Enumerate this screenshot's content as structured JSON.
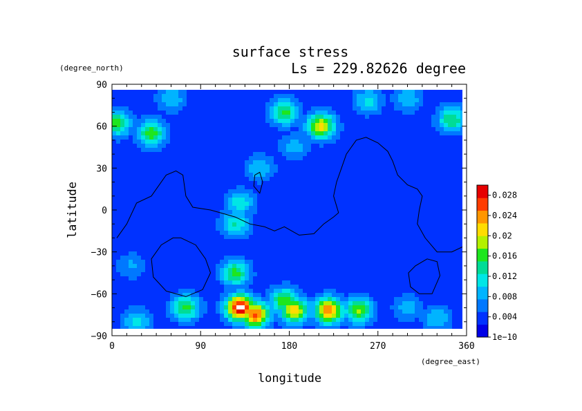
{
  "chart_data": {
    "type": "heatmap",
    "title": "surface stress",
    "subtitle": "Ls = 229.82626 degree",
    "xlabel": "longitude",
    "ylabel": "latitude",
    "x_units": "(degree_east)",
    "y_units": "(degree_north)",
    "xlim": [
      0,
      360
    ],
    "ylim": [
      -90,
      90
    ],
    "x_ticks": [
      "0",
      "90",
      "180",
      "270",
      "360"
    ],
    "y_ticks": [
      "90",
      "60",
      "30",
      "0",
      "−30",
      "−60",
      "−90"
    ],
    "colorbar": {
      "min": 0,
      "max": 0.03,
      "tick_labels": [
        "1e−10",
        "0.004",
        "0.008",
        "0.012",
        "0.016",
        "0.02",
        "0.024",
        "0.028"
      ],
      "tick_values": [
        0,
        0.004,
        0.008,
        0.012,
        0.016,
        0.02,
        0.024,
        0.028
      ],
      "colors": [
        "#0000e6",
        "#0032ff",
        "#0078ff",
        "#00b4ff",
        "#00e6e6",
        "#00dc96",
        "#1ee61e",
        "#b4f000",
        "#ffdc00",
        "#ff9600",
        "#ff3c00",
        "#e60000"
      ]
    },
    "background_value": 0.0035,
    "features": [
      {
        "lon": 212,
        "lat": 60,
        "value": 0.021
      },
      {
        "lon": 130,
        "lat": -70,
        "value": 0.031
      },
      {
        "lon": 145,
        "lat": -75,
        "value": 0.026
      },
      {
        "lon": 185,
        "lat": -72,
        "value": 0.022
      },
      {
        "lon": 220,
        "lat": -72,
        "value": 0.025
      },
      {
        "lon": 250,
        "lat": -72,
        "value": 0.018
      },
      {
        "lon": 175,
        "lat": -65,
        "value": 0.017
      },
      {
        "lon": 125,
        "lat": -45,
        "value": 0.016
      },
      {
        "lon": 125,
        "lat": -10,
        "value": 0.013
      },
      {
        "lon": 130,
        "lat": 5,
        "value": 0.012
      },
      {
        "lon": 150,
        "lat": 30,
        "value": 0.01
      },
      {
        "lon": 185,
        "lat": 45,
        "value": 0.009
      },
      {
        "lon": 175,
        "lat": 70,
        "value": 0.016
      },
      {
        "lon": 260,
        "lat": 78,
        "value": 0.011
      },
      {
        "lon": 300,
        "lat": 80,
        "value": 0.01
      },
      {
        "lon": 40,
        "lat": 55,
        "value": 0.017
      },
      {
        "lon": 5,
        "lat": 62,
        "value": 0.016
      },
      {
        "lon": 345,
        "lat": 65,
        "value": 0.015
      },
      {
        "lon": 60,
        "lat": 80,
        "value": 0.01
      },
      {
        "lon": 25,
        "lat": -80,
        "value": 0.011
      },
      {
        "lon": 75,
        "lat": -70,
        "value": 0.016
      },
      {
        "lon": 330,
        "lat": -78,
        "value": 0.01
      },
      {
        "lon": 300,
        "lat": -70,
        "value": 0.009
      },
      {
        "lon": 20,
        "lat": -40,
        "value": 0.008
      }
    ],
    "contour_lines": [
      [
        [
          5,
          -20
        ],
        [
          15,
          -10
        ],
        [
          25,
          5
        ],
        [
          40,
          10
        ],
        [
          55,
          25
        ],
        [
          65,
          28
        ],
        [
          72,
          25
        ],
        [
          75,
          10
        ],
        [
          82,
          2
        ],
        [
          100,
          0
        ],
        [
          110,
          -2
        ],
        [
          125,
          -5
        ],
        [
          140,
          -10
        ],
        [
          155,
          -12
        ],
        [
          165,
          -15
        ],
        [
          175,
          -12
        ],
        [
          190,
          -18
        ],
        [
          205,
          -17
        ],
        [
          215,
          -10
        ],
        [
          225,
          -5
        ],
        [
          230,
          -2
        ],
        [
          225,
          10
        ],
        [
          228,
          20
        ],
        [
          232,
          28
        ],
        [
          238,
          40
        ],
        [
          248,
          50
        ],
        [
          258,
          52
        ],
        [
          270,
          48
        ],
        [
          280,
          42
        ],
        [
          285,
          35
        ],
        [
          290,
          25
        ],
        [
          300,
          18
        ],
        [
          310,
          15
        ],
        [
          315,
          10
        ],
        [
          312,
          0
        ],
        [
          310,
          -10
        ],
        [
          318,
          -20
        ],
        [
          330,
          -30
        ],
        [
          345,
          -30
        ],
        [
          360,
          -25
        ]
      ],
      [
        [
          70,
          -20
        ],
        [
          85,
          -25
        ],
        [
          95,
          -35
        ],
        [
          100,
          -45
        ],
        [
          92,
          -57
        ],
        [
          75,
          -62
        ],
        [
          55,
          -58
        ],
        [
          42,
          -48
        ],
        [
          40,
          -35
        ],
        [
          50,
          -25
        ],
        [
          62,
          -20
        ],
        [
          70,
          -20
        ]
      ],
      [
        [
          145,
          25
        ],
        [
          150,
          27
        ],
        [
          153,
          20
        ],
        [
          150,
          12
        ],
        [
          144,
          17
        ],
        [
          145,
          25
        ]
      ],
      [
        [
          320,
          -35
        ],
        [
          330,
          -37
        ],
        [
          333,
          -47
        ],
        [
          325,
          -60
        ],
        [
          312,
          -60
        ],
        [
          303,
          -55
        ],
        [
          301,
          -45
        ],
        [
          308,
          -40
        ],
        [
          320,
          -35
        ]
      ]
    ]
  }
}
